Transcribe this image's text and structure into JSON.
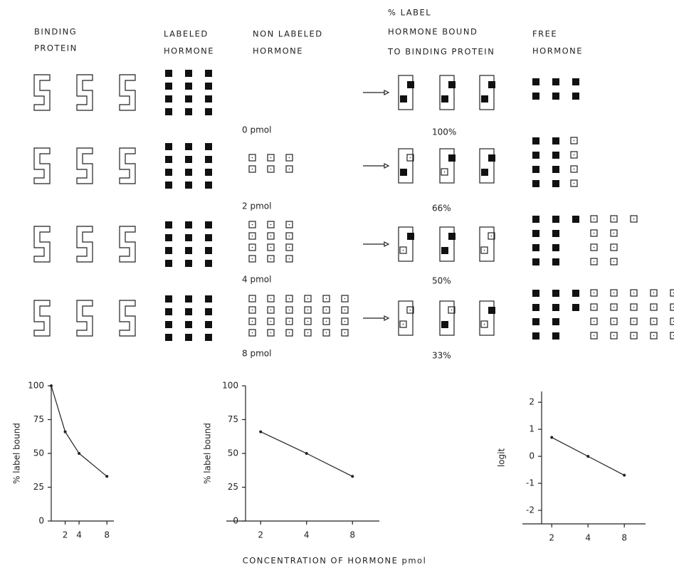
{
  "header": {
    "columns": [
      {
        "lines": [
          "BINDING",
          "PROTEIN"
        ]
      },
      {
        "lines": [
          "LABELED",
          "HORMONE"
        ]
      },
      {
        "lines": [
          "NON LABELED",
          "HORMONE"
        ]
      },
      {
        "lines": [
          "% LABEL",
          "HORMONE BOUND",
          "TO BINDING PROTEIN"
        ]
      },
      {
        "lines": [
          "FREE",
          "HORMONE"
        ]
      }
    ]
  },
  "rows": [
    {
      "amount": "0 pmol",
      "percent": "100%"
    },
    {
      "amount": "2 pmol",
      "percent": "66%"
    },
    {
      "amount": "4 pmol",
      "percent": "50%"
    },
    {
      "amount": "8 pmol",
      "percent": "33%"
    }
  ],
  "chart_data": [
    {
      "type": "line",
      "y_label": "% label bound",
      "x": [
        0,
        2,
        4,
        8
      ],
      "values": [
        100,
        66,
        50,
        33
      ],
      "xlim": [
        0,
        9
      ],
      "ylim": [
        0,
        100
      ],
      "xticks": [
        2,
        4,
        8
      ],
      "yticks": [
        0,
        25,
        50,
        75,
        100
      ],
      "x_scale": "linear",
      "color": "#222222"
    },
    {
      "type": "line",
      "y_label": "% label bound",
      "x": [
        2,
        4,
        8
      ],
      "values": [
        66,
        50,
        33
      ],
      "xlim": [
        1.4,
        12
      ],
      "ylim": [
        0,
        100
      ],
      "xticks": [
        2,
        4,
        8
      ],
      "yticks": [
        0,
        25,
        50,
        75,
        100
      ],
      "x_scale": "log",
      "color": "#222222"
    },
    {
      "type": "line",
      "y_label": "logit",
      "x": [
        2,
        4,
        8
      ],
      "values": [
        0.7,
        0,
        -0.7
      ],
      "xlim": [
        1.4,
        12
      ],
      "ylim": [
        -2.5,
        2.4
      ],
      "xticks": [
        2,
        4,
        8
      ],
      "yticks": [
        -2,
        -1,
        0,
        1,
        2
      ],
      "x_scale": "log",
      "color": "#222222"
    }
  ],
  "x_axis_title": "CONCENTRATION OF HORMONE pmol"
}
